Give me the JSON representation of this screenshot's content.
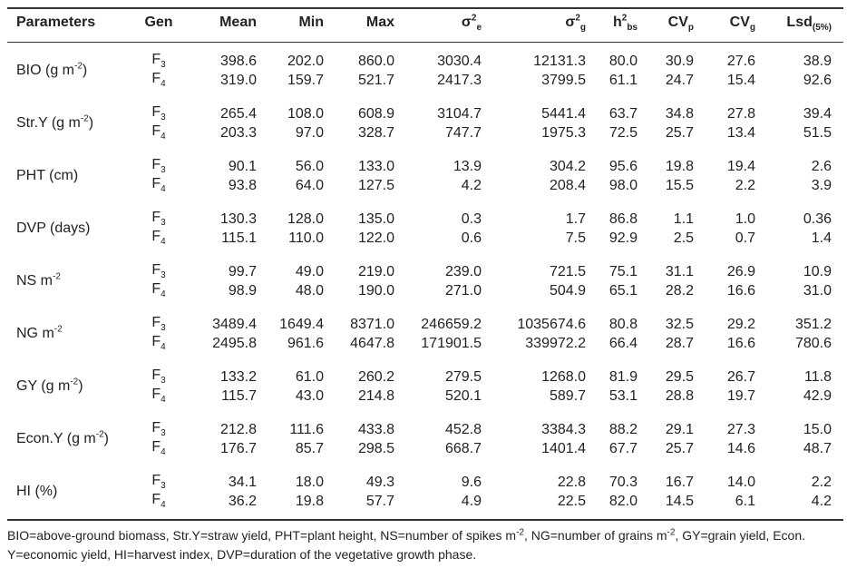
{
  "header": [
    [
      {
        "text": "Parameters"
      }
    ],
    [
      {
        "text": "Gen"
      }
    ],
    [
      {
        "text": "Mean"
      }
    ],
    [
      {
        "text": "Min"
      }
    ],
    [
      {
        "text": "Max"
      }
    ],
    [
      {
        "text": "σ"
      },
      {
        "sup": "2"
      },
      {
        "sub": "e"
      }
    ],
    [
      {
        "text": "σ"
      },
      {
        "sup": "2"
      },
      {
        "sub": "g"
      }
    ],
    [
      {
        "text": "h"
      },
      {
        "sup": "2"
      },
      {
        "sub": "bs"
      }
    ],
    [
      {
        "text": "CV"
      },
      {
        "sub": "p"
      }
    ],
    [
      {
        "text": "CV"
      },
      {
        "sub": "g"
      }
    ],
    [
      {
        "text": "Lsd"
      },
      {
        "sub": "(5%)"
      }
    ]
  ],
  "rows": [
    {
      "parameter": [
        {
          "text": "BIO (g m"
        },
        {
          "sup": "-2"
        },
        {
          "text": ")"
        }
      ],
      "lines": [
        {
          "gen": [
            {
              "text": "F"
            },
            {
              "sub": "3"
            }
          ],
          "values": [
            "398.6",
            "202.0",
            "860.0",
            "3030.4",
            "12131.3",
            "80.0",
            "30.9",
            "27.6",
            "38.9"
          ]
        },
        {
          "gen": [
            {
              "text": "F"
            },
            {
              "sub": "4"
            }
          ],
          "values": [
            "319.0",
            "159.7",
            "521.7",
            "2417.3",
            "3799.5",
            "61.1",
            "24.7",
            "15.4",
            "92.6"
          ]
        }
      ]
    },
    {
      "parameter": [
        {
          "text": "Str.Y (g m"
        },
        {
          "sup": "-2"
        },
        {
          "text": ")"
        }
      ],
      "lines": [
        {
          "gen": [
            {
              "text": "F"
            },
            {
              "sub": "3"
            }
          ],
          "values": [
            "265.4",
            "108.0",
            "608.9",
            "3104.7",
            "5441.4",
            "63.7",
            "34.8",
            "27.8",
            "39.4"
          ]
        },
        {
          "gen": [
            {
              "text": "F"
            },
            {
              "sub": "4"
            }
          ],
          "values": [
            "203.3",
            "97.0",
            "328.7",
            "747.7",
            "1975.3",
            "72.5",
            "25.7",
            "13.4",
            "51.5"
          ]
        }
      ]
    },
    {
      "parameter": [
        {
          "text": "PHT (cm)"
        }
      ],
      "lines": [
        {
          "gen": [
            {
              "text": "F"
            },
            {
              "sub": "3"
            }
          ],
          "values": [
            "90.1",
            "56.0",
            "133.0",
            "13.9",
            "304.2",
            "95.6",
            "19.8",
            "19.4",
            "2.6"
          ]
        },
        {
          "gen": [
            {
              "text": "F"
            },
            {
              "sub": "4"
            }
          ],
          "values": [
            "93.8",
            "64.0",
            "127.5",
            "4.2",
            "208.4",
            "98.0",
            "15.5",
            "2.2",
            "3.9"
          ]
        }
      ]
    },
    {
      "parameter": [
        {
          "text": "DVP (days)"
        }
      ],
      "lines": [
        {
          "gen": [
            {
              "text": "F"
            },
            {
              "sub": "3"
            }
          ],
          "values": [
            "130.3",
            "128.0",
            "135.0",
            "0.3",
            "1.7",
            "86.8",
            "1.1",
            "1.0",
            "0.36"
          ]
        },
        {
          "gen": [
            {
              "text": "F"
            },
            {
              "sub": "4"
            }
          ],
          "values": [
            "115.1",
            "110.0",
            "122.0",
            "0.6",
            "7.5",
            "92.9",
            "2.5",
            "0.7",
            "1.4"
          ]
        }
      ]
    },
    {
      "parameter": [
        {
          "text": "NS m"
        },
        {
          "sup": "-2"
        }
      ],
      "lines": [
        {
          "gen": [
            {
              "text": "F"
            },
            {
              "sub": "3"
            }
          ],
          "values": [
            "99.7",
            "49.0",
            "219.0",
            "239.0",
            "721.5",
            "75.1",
            "31.1",
            "26.9",
            "10.9"
          ]
        },
        {
          "gen": [
            {
              "text": "F"
            },
            {
              "sub": "4"
            }
          ],
          "values": [
            "98.9",
            "48.0",
            "190.0",
            "271.0",
            "504.9",
            "65.1",
            "28.2",
            "16.6",
            "31.0"
          ]
        }
      ]
    },
    {
      "parameter": [
        {
          "text": "NG m"
        },
        {
          "sup": "-2"
        }
      ],
      "lines": [
        {
          "gen": [
            {
              "text": "F"
            },
            {
              "sub": "3"
            }
          ],
          "values": [
            "3489.4",
            "1649.4",
            "8371.0",
            "246659.2",
            "1035674.6",
            "80.8",
            "32.5",
            "29.2",
            "351.2"
          ]
        },
        {
          "gen": [
            {
              "text": "F"
            },
            {
              "sub": "4"
            }
          ],
          "values": [
            "2495.8",
            "961.6",
            "4647.8",
            "171901.5",
            "339972.2",
            "66.4",
            "28.7",
            "16.6",
            "780.6"
          ]
        }
      ]
    },
    {
      "parameter": [
        {
          "text": "GY (g m"
        },
        {
          "sup": "-2"
        },
        {
          "text": ")"
        }
      ],
      "lines": [
        {
          "gen": [
            {
              "text": "F"
            },
            {
              "sub": "3"
            }
          ],
          "values": [
            "133.2",
            "61.0",
            "260.2",
            "279.5",
            "1268.0",
            "81.9",
            "29.5",
            "26.7",
            "11.8"
          ]
        },
        {
          "gen": [
            {
              "text": "F"
            },
            {
              "sub": "4"
            }
          ],
          "values": [
            "115.7",
            "43.0",
            "214.8",
            "520.1",
            "589.7",
            "53.1",
            "28.8",
            "19.7",
            "42.9"
          ]
        }
      ]
    },
    {
      "parameter": [
        {
          "text": "Econ.Y (g m"
        },
        {
          "sup": "-2"
        },
        {
          "text": ")"
        }
      ],
      "lines": [
        {
          "gen": [
            {
              "text": "F"
            },
            {
              "sub": "3"
            }
          ],
          "values": [
            "212.8",
            "111.6",
            "433.8",
            "452.8",
            "3384.3",
            "88.2",
            "29.1",
            "27.3",
            "15.0"
          ]
        },
        {
          "gen": [
            {
              "text": "F"
            },
            {
              "sub": "4"
            }
          ],
          "values": [
            "176.7",
            "85.7",
            "298.5",
            "668.7",
            "1401.4",
            "67.7",
            "25.7",
            "14.6",
            "48.7"
          ]
        }
      ]
    },
    {
      "parameter": [
        {
          "text": "HI (%)"
        }
      ],
      "lines": [
        {
          "gen": [
            {
              "text": "F"
            },
            {
              "sub": "3"
            }
          ],
          "values": [
            "34.1",
            "18.0",
            "49.3",
            "9.6",
            "22.8",
            "70.3",
            "16.7",
            "14.0",
            "2.2"
          ]
        },
        {
          "gen": [
            {
              "text": "F"
            },
            {
              "sub": "4"
            }
          ],
          "values": [
            "36.2",
            "19.8",
            "57.7",
            "4.9",
            "22.5",
            "82.0",
            "14.5",
            "6.1",
            "4.2"
          ]
        }
      ]
    }
  ],
  "footnote": [
    {
      "text": "BIO=above-ground biomass, Str.Y=straw yield, PHT=plant height, NS=number of spikes m"
    },
    {
      "sup": "-2"
    },
    {
      "text": ", NG=number of grains m"
    },
    {
      "sup": "-2"
    },
    {
      "text": ", GY=grain yield, Econ. Y=economic yield, HI=harvest index, DVP=duration of the vegetative growth phase."
    }
  ]
}
